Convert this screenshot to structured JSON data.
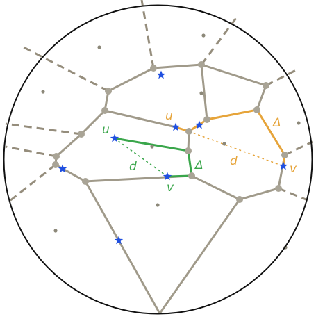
{
  "colors": {
    "background": "#ffffff",
    "circle": "#111111",
    "edge": "#a09a8a",
    "dashed_edge": "#958d7c",
    "vertex": "#a9a496",
    "site": "#8c8879",
    "green": "#3aa64b",
    "orange": "#e6a43a",
    "star": "#1f4fe0"
  },
  "labels": {
    "green_u": "u",
    "green_v": "v",
    "green_d": "d",
    "green_delta": "Δ",
    "orange_u": "u",
    "orange_v": "v",
    "orange_d": "d",
    "orange_delta": "Δ"
  }
}
